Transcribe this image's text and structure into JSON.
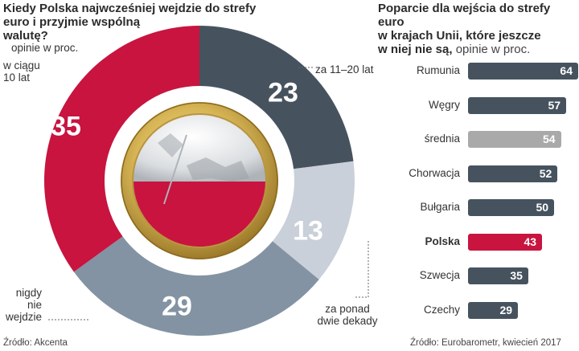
{
  "chart_data": [
    {
      "type": "pie",
      "title_line1": "Kiedy Polska najwcześniej wejdzie do strefy",
      "title_line2": "euro i przyjmie wspólną",
      "title_line3": "walutę?",
      "subtitle": "opinie w proc.",
      "slices": [
        {
          "label": "za 11–20 lat",
          "value": 23,
          "color": "#46535f"
        },
        {
          "label": "za ponad dwie dekady",
          "value": 13,
          "color": "#c9d0d9"
        },
        {
          "label": "nigdy nie wejdzie",
          "value": 29,
          "color": "#8393a3"
        },
        {
          "label": "w ciągu 10 lat",
          "value": 35,
          "color": "#c8143f"
        }
      ],
      "annot": {
        "w_ciagu_1": "w ciągu",
        "w_ciagu_2": "10 lat",
        "za_11_20": "za 11–20 lat",
        "za_ponad_1": "za ponad",
        "za_ponad_2": "dwie dekady",
        "nigdy_1": "nigdy",
        "nigdy_2": "nie",
        "nigdy_3": "wejdzie"
      },
      "values_text": {
        "w_ciagu": "35",
        "za_11_20": "23",
        "za_ponad": "13",
        "nigdy": "29"
      },
      "source": "Źródło: Akcenta"
    },
    {
      "type": "bar",
      "title_line1": "Poparcie dla wejścia do strefy euro",
      "title_line2": "w krajach Unii, które jeszcze",
      "title_line3": "w niej nie są,",
      "subtitle": "opinie w proc.",
      "xlim": [
        0,
        64
      ],
      "categories": [
        "Rumunia",
        "Węgry",
        "średnia",
        "Chorwacja",
        "Bułgaria",
        "Polska",
        "Szwecja",
        "Czechy"
      ],
      "values": [
        64,
        57,
        54,
        52,
        50,
        43,
        35,
        29
      ],
      "value_labels": [
        "64",
        "57",
        "54",
        "52",
        "50",
        "43",
        "35",
        "29"
      ],
      "colors": [
        "#46535f",
        "#46535f",
        "#a9a9a9",
        "#46535f",
        "#46535f",
        "#c8143f",
        "#46535f",
        "#46535f"
      ],
      "source": "Źródło: Eurobarometr, kwiecień 2017"
    }
  ]
}
